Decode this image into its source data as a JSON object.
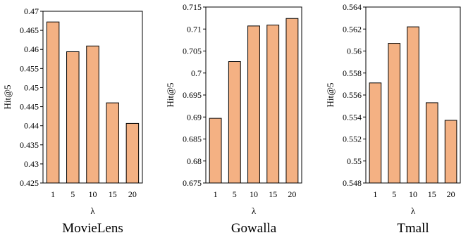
{
  "chart_data": [
    {
      "type": "bar",
      "title": "MovieLens",
      "xlabel": "λ",
      "ylabel": "Hit@5",
      "categories": [
        "1",
        "5",
        "10",
        "15",
        "20"
      ],
      "values": [
        0.4672,
        0.4594,
        0.4609,
        0.446,
        0.4406
      ],
      "ylim": [
        0.425,
        0.47
      ],
      "yticks": [
        "0.425",
        "0.43",
        "0.435",
        "0.44",
        "0.445",
        "0.45",
        "0.455",
        "0.46",
        "0.465",
        "0.47"
      ],
      "bar_color": "#F4B183",
      "grid": false
    },
    {
      "type": "bar",
      "title": "Gowalla",
      "xlabel": "λ",
      "ylabel": "Hit@5",
      "categories": [
        "1",
        "5",
        "10",
        "15",
        "20"
      ],
      "values": [
        0.6897,
        0.7026,
        0.7107,
        0.7109,
        0.7124
      ],
      "ylim": [
        0.675,
        0.715
      ],
      "yticks": [
        "0.675",
        "0.68",
        "0.685",
        "0.69",
        "0.695",
        "0.7",
        "0.705",
        "0.71",
        "0.715"
      ],
      "bar_color": "#F4B183",
      "grid": false
    },
    {
      "type": "bar",
      "title": "Tmall",
      "xlabel": "λ",
      "ylabel": "Hit@5",
      "categories": [
        "1",
        "5",
        "10",
        "15",
        "20"
      ],
      "values": [
        0.5571,
        0.5607,
        0.5622,
        0.5553,
        0.5537
      ],
      "ylim": [
        0.548,
        0.564
      ],
      "yticks": [
        "0.548",
        "0.55",
        "0.552",
        "0.554",
        "0.556",
        "0.558",
        "0.56",
        "0.562",
        "0.564"
      ],
      "bar_color": "#F4B183",
      "grid": false
    }
  ]
}
